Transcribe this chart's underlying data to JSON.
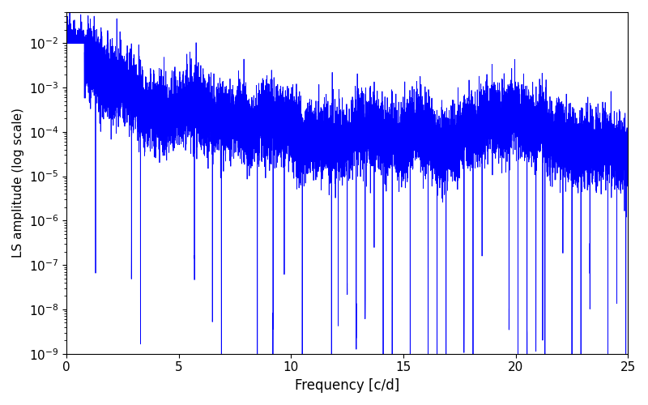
{
  "xlabel": "Frequency [c/d]",
  "ylabel": "LS amplitude (log scale)",
  "xlim": [
    0,
    25
  ],
  "ylim": [
    1e-09,
    0.05
  ],
  "line_color": "#0000ff",
  "line_width": 0.6,
  "figsize": [
    8.0,
    5.0
  ],
  "dpi": 100,
  "freq_max": 25.0,
  "n_points": 15000,
  "bg_color": "#ffffff",
  "tick_labelsize": 11,
  "xlabel_fontsize": 12,
  "ylabel_fontsize": 11
}
